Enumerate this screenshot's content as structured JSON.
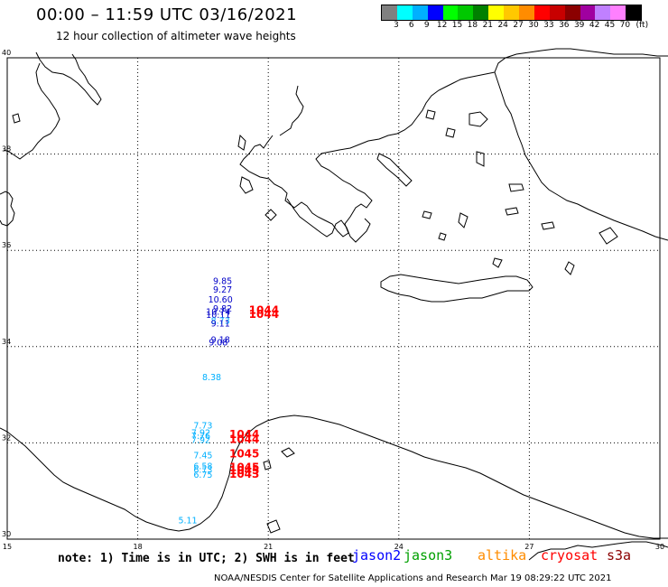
{
  "header": {
    "title": "00:00 – 11:59 UTC 03/16/2021",
    "subtitle": "12 hour collection of altimeter wave heights"
  },
  "color_scale": {
    "unit": "(ft)",
    "labels": [
      "3",
      "6",
      "9",
      "12",
      "15",
      "18",
      "21",
      "24",
      "27",
      "30",
      "33",
      "36",
      "39",
      "42",
      "45",
      "70"
    ],
    "colors": [
      "#808080",
      "#00ffff",
      "#00b0ff",
      "#0000ff",
      "#00ff00",
      "#00c800",
      "#008000",
      "#ffff00",
      "#ffc800",
      "#ff8c00",
      "#ff0000",
      "#c80000",
      "#8b0000",
      "#a000a0",
      "#c080ff",
      "#ff80ff",
      "#000000"
    ]
  },
  "map": {
    "lat_labels": [
      "40",
      "38",
      "36",
      "34",
      "32",
      "30"
    ],
    "lon_labels": [
      "15",
      "18",
      "21",
      "24",
      "27",
      "30"
    ],
    "extent": {
      "lon_min": 15,
      "lon_max": 30,
      "lat_min": 30,
      "lat_max": 40
    }
  },
  "observations": [
    {
      "text": "9.85",
      "color": "#0000c8",
      "lat": 35.3,
      "lon": 19.95
    },
    {
      "text": "9.27",
      "color": "#0000c8",
      "lat": 35.12,
      "lon": 19.95
    },
    {
      "text": "10.60",
      "color": "#0000c8",
      "lat": 34.92,
      "lon": 19.9
    },
    {
      "text": "9.82",
      "color": "#0000c8",
      "lat": 34.73,
      "lon": 19.95
    },
    {
      "text": "10.74",
      "color": "#0000c8",
      "lat": 34.66,
      "lon": 19.85
    },
    {
      "text": "10.11",
      "color": "#0000c8",
      "lat": 34.6,
      "lon": 19.85
    },
    {
      "text": "8.73",
      "color": "#00b0ff",
      "lat": 34.47,
      "lon": 19.9
    },
    {
      "text": "9.11",
      "color": "#0000c8",
      "lat": 34.42,
      "lon": 19.9
    },
    {
      "text": "9.18",
      "color": "#0000c8",
      "lat": 34.08,
      "lon": 19.9
    },
    {
      "text": "9.08",
      "color": "#0000c8",
      "lat": 34.02,
      "lon": 19.85
    },
    {
      "text": "8.38",
      "color": "#00b0ff",
      "lat": 33.3,
      "lon": 19.7
    },
    {
      "text": "7.73",
      "color": "#00b0ff",
      "lat": 32.3,
      "lon": 19.5
    },
    {
      "text": "7.92",
      "color": "#00b0ff",
      "lat": 32.15,
      "lon": 19.45
    },
    {
      "text": "7.76",
      "color": "#00b0ff",
      "lat": 32.08,
      "lon": 19.45
    },
    {
      "text": "7.92",
      "color": "#00b0ff",
      "lat": 32.0,
      "lon": 19.45
    },
    {
      "text": "7.45",
      "color": "#00b0ff",
      "lat": 31.68,
      "lon": 19.5
    },
    {
      "text": "6.58",
      "color": "#00b0ff",
      "lat": 31.45,
      "lon": 19.5
    },
    {
      "text": "6.73",
      "color": "#00b0ff",
      "lat": 31.38,
      "lon": 19.5
    },
    {
      "text": "6.75",
      "color": "#00b0ff",
      "lat": 31.28,
      "lon": 19.5
    },
    {
      "text": "5.11",
      "color": "#00b0ff",
      "lat": 30.33,
      "lon": 19.15
    },
    {
      "text": "1044",
      "color": "#ff0000",
      "lat": 34.68,
      "lon": 20.9
    },
    {
      "text": "1044",
      "color": "#ff0000",
      "lat": 34.6,
      "lon": 20.9
    },
    {
      "text": "1044",
      "color": "#ff0000",
      "lat": 32.1,
      "lon": 20.45
    },
    {
      "text": "1044",
      "color": "#ff0000",
      "lat": 32.0,
      "lon": 20.45
    },
    {
      "text": "1045",
      "color": "#ff0000",
      "lat": 31.7,
      "lon": 20.45
    },
    {
      "text": "1045",
      "color": "#ff0000",
      "lat": 31.42,
      "lon": 20.45
    },
    {
      "text": "1045",
      "color": "#ff0000",
      "lat": 31.35,
      "lon": 20.45
    },
    {
      "text": "1043",
      "color": "#ff0000",
      "lat": 31.28,
      "lon": 20.45
    }
  ],
  "footer": {
    "note": "note: 1) Time is in UTC; 2) SWH is in feet",
    "satellites": [
      {
        "name": "jason2",
        "color": "#0000ff"
      },
      {
        "name": "jason3",
        "color": "#00a000"
      },
      {
        "name": "altika",
        "color": "#ff8c00"
      },
      {
        "name": "cryosat",
        "color": "#ff0000"
      },
      {
        "name": "s3a",
        "color": "#8b0000"
      }
    ],
    "credit": "NOAA/NESDIS Center for Satellite Applications and Research    Mar 19 08:29:22 UTC 2021"
  }
}
